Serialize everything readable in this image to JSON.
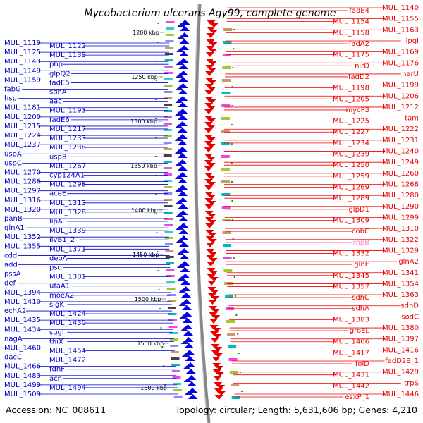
{
  "title": "Mycobacterium ulcerans Agy99, complete genome",
  "footer": {
    "accession": "Accession: NC_008611",
    "summary": "Topology: circular; Length: 5,631,606 bp; Genes: 4,210"
  },
  "colors": {
    "reverse_strand": "#0000cc",
    "forward_strand": "#ee0000",
    "rna_gene": "#ff88cc",
    "backbone": "#888888",
    "tick": "#228822"
  },
  "kbp_ticks": [
    "1200 kbp",
    "1250 kbp",
    "1300 kbp",
    "1350 kbp",
    "1400 kbp",
    "1450 kbp",
    "1500 kbp",
    "1550 kbp",
    "1600 kbp"
  ],
  "left_labels": [
    "MUL_1119",
    "MUL_1122",
    "MUL_1125",
    "MUL_1138",
    "MUL_1143",
    "php",
    "MUL_1149",
    "glpQ2",
    "MUL_1159",
    "fadE5",
    "fabG",
    "sdhA",
    "hsp",
    "aac",
    "MUL_1181",
    "MUL_1193",
    "MUL_1200",
    "fadE6",
    "MUL_1215",
    "MUL_1217",
    "MUL_1224",
    "MUL_1233",
    "MUL_1237",
    "MUL_1238",
    "uspA",
    "uspB",
    "uspC",
    "MUL_1267",
    "MUL_1270",
    "cyp124A1",
    "MUL_1286",
    "MUL_1298",
    "MUL_1297",
    "aceE",
    "MUL_1316",
    "MUL_1313",
    "MUL_1320",
    "MUL_1328",
    "panB",
    "lipA",
    "glnA1",
    "MUL_1339",
    "MUL_1352",
    "ilvB1_2",
    "MUL_1355",
    "MUL_1371",
    "cdd",
    "deoA",
    "add",
    "psd",
    "pssA",
    "MUL_1381",
    "def",
    "ufaA1",
    "MUL_1394",
    "moeA2",
    "MUL_1410",
    "sigK",
    "echA2",
    "MUL_1424",
    "MUL_1435",
    "MUL_1430",
    "MUL_1434",
    "sugI",
    "nagA",
    "thiX",
    "MUL_1460",
    "MUL_1454",
    "dacC",
    "MUL_1472",
    "MUL_1466",
    "fdhF",
    "MUL_1483",
    "acn",
    "MUL_1499",
    "MUL_1494",
    "MUL_1509"
  ],
  "right_labels": [
    "MUL_1140",
    "fadE4",
    "MUL_1155",
    "MUL_1154",
    "MUL_1163",
    "MUL_1158",
    "lpqI",
    "fadA2",
    "MUL_1169",
    "MUL_1175",
    "MUL_1176",
    "nirD",
    "narU",
    "fadD2",
    "MUL_1199",
    "MUL_1198",
    "MUL_1206",
    "MUL_1205",
    "MUL_1212",
    "mycP3",
    "tam",
    "MUL_1225",
    "MUL_1222",
    "MUL_1227",
    "MUL_1231",
    "MUL_1234",
    "MUL_1240",
    "MUL_1239",
    "MUL_1249",
    "MUL_1250",
    "MUL_1260",
    "MUL_1259",
    "MUL_1268",
    "MUL_1269",
    "MUL_1280",
    "MUL_1289",
    "MUL_1290",
    "glpD1",
    "MUL_1299",
    "MUL_1309",
    "MUL_1310",
    "cobC",
    "MUL_1322",
    "rnpB",
    "MUL_1329",
    "MUL_1332",
    "glnA2",
    "glnE",
    "MUL_1341",
    "MUL_1345",
    "MUL_1354",
    "MUL_1357",
    "MUL_1363",
    "sdhC",
    "sdhD",
    "sdhA",
    "sodC",
    "MUL_1383",
    "MUL_1380",
    "groEL",
    "MUL_1397",
    "MUL_1406",
    "MUL_1416",
    "MUL_1417",
    "fadD28_1",
    "folD",
    "MUL_1429",
    "MUL_1431",
    "trpS",
    "MUL_1442",
    "MUL_1446",
    "esxP_1"
  ]
}
